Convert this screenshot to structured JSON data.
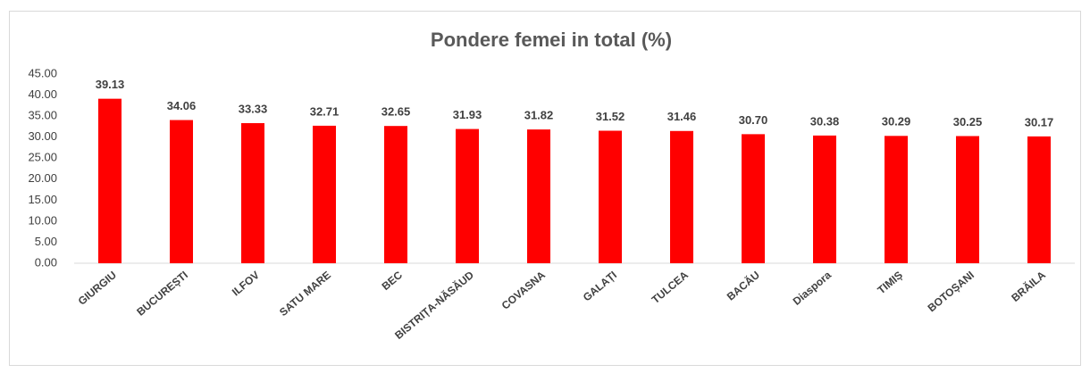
{
  "chart_data": {
    "type": "bar",
    "title": "Pondere femei in total (%)",
    "categories": [
      "GIURGIU",
      "BUCUREȘTI",
      "ILFOV",
      "SATU MARE",
      "BEC",
      "BISTRIȚA-NĂSĂUD",
      "COVASNA",
      "GALAȚI",
      "TULCEA",
      "BACĂU",
      "Diaspora",
      "TIMIȘ",
      "BOTOȘANI",
      "BRĂILA"
    ],
    "values": [
      39.13,
      34.06,
      33.33,
      32.71,
      32.65,
      31.93,
      31.82,
      31.52,
      31.46,
      30.7,
      30.38,
      30.29,
      30.25,
      30.17
    ],
    "value_labels": [
      "39.13",
      "34.06",
      "33.33",
      "32.71",
      "32.65",
      "31.93",
      "31.82",
      "31.52",
      "31.46",
      "30.70",
      "30.38",
      "30.29",
      "30.25",
      "30.17"
    ],
    "color": "#ff0000",
    "ylim": [
      0,
      45
    ],
    "yticks": [
      {
        "value": 0,
        "label": "0.00"
      },
      {
        "value": 5,
        "label": "5.00"
      },
      {
        "value": 10,
        "label": "10.00"
      },
      {
        "value": 15,
        "label": "15.00"
      },
      {
        "value": 20,
        "label": "20.00"
      },
      {
        "value": 25,
        "label": "25.00"
      },
      {
        "value": 30,
        "label": "30.00"
      },
      {
        "value": 35,
        "label": "35.00"
      },
      {
        "value": 40,
        "label": "40.00"
      },
      {
        "value": 45,
        "label": "45.00"
      }
    ],
    "grid": false
  }
}
